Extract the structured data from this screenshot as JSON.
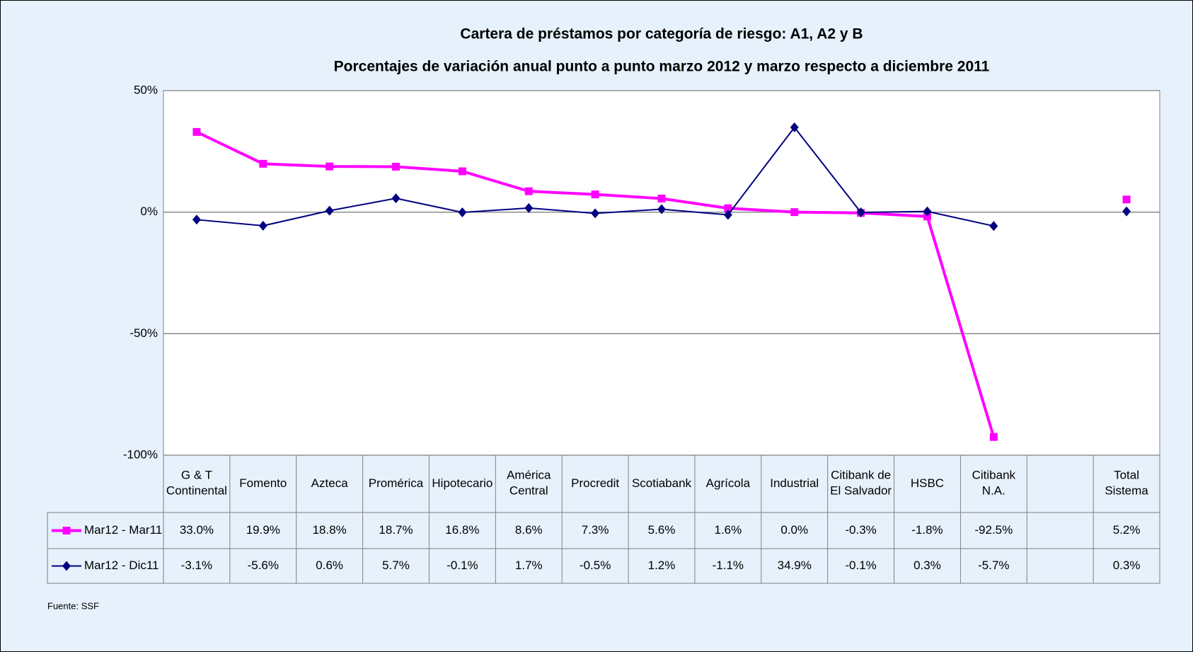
{
  "chart_data": {
    "type": "line",
    "title": "Cartera de préstamos por categoría de riesgo: A1, A2 y B",
    "subtitle": "Porcentajes de variación anual punto a punto marzo 2012 y marzo respecto a diciembre 2011",
    "categories": [
      "G & T Continental",
      "Fomento",
      "Azteca",
      "Promérica",
      "Hipotecario",
      "América Central",
      "Procredit",
      "Scotiabank",
      "Agrícola",
      "Industrial",
      "Citibank de El Salvador",
      "HSBC",
      "Citibank N.A.",
      null,
      "Total Sistema"
    ],
    "series": [
      {
        "name": "Mar12 - Mar11",
        "color": "#ff00ff",
        "marker": "square",
        "values": [
          33.0,
          19.9,
          18.8,
          18.7,
          16.8,
          8.6,
          7.3,
          5.6,
          1.6,
          0.0,
          -0.3,
          -1.8,
          -92.5,
          null,
          5.2
        ],
        "value_labels": [
          "33.0%",
          "19.9%",
          "18.8%",
          "18.7%",
          "16.8%",
          "8.6%",
          "7.3%",
          "5.6%",
          "1.6%",
          "0.0%",
          "-0.3%",
          "-1.8%",
          "-92.5%",
          null,
          "5.2%"
        ]
      },
      {
        "name": "Mar12 - Dic11",
        "color": "#000080",
        "marker": "diamond",
        "values": [
          -3.1,
          -5.6,
          0.6,
          5.7,
          -0.1,
          1.7,
          -0.5,
          1.2,
          -1.1,
          34.9,
          -0.1,
          0.3,
          -5.7,
          null,
          0.3
        ],
        "value_labels": [
          "-3.1%",
          "-5.6%",
          "0.6%",
          "5.7%",
          "-0.1%",
          "1.7%",
          "-0.5%",
          "1.2%",
          "-1.1%",
          "34.9%",
          "-0.1%",
          "0.3%",
          "-5.7%",
          null,
          "0.3%"
        ]
      }
    ],
    "ylim": [
      -100,
      50
    ],
    "yticks": [
      {
        "value": -100,
        "label": "-100%"
      },
      {
        "value": -50,
        "label": "-50%"
      },
      {
        "value": 0,
        "label": "0%"
      },
      {
        "value": 50,
        "label": "50%"
      }
    ],
    "grid": true,
    "source": "Fuente: SSF"
  }
}
